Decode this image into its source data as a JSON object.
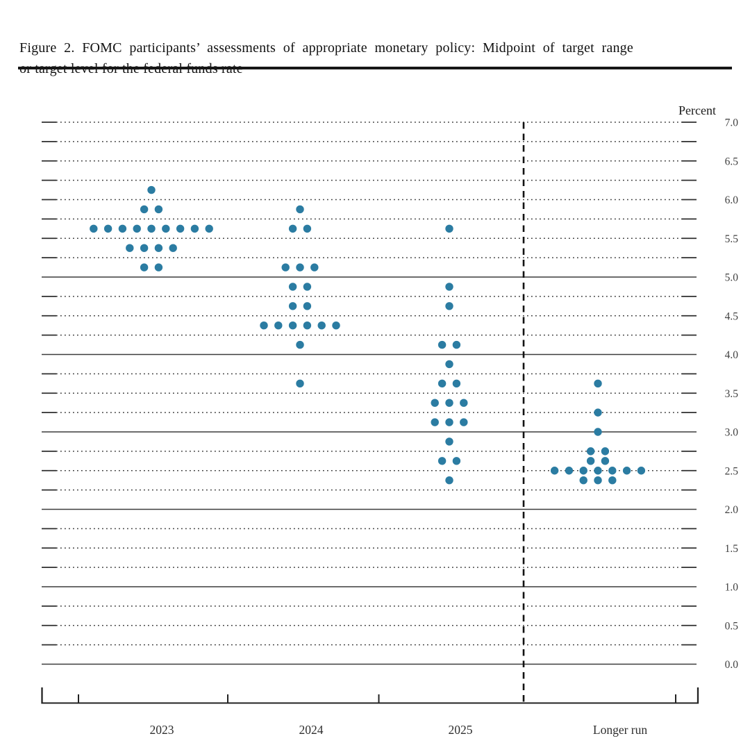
{
  "title": {
    "line1": "Figure 2.  FOMC participants’ assessments of appropriate monetary policy: Midpoint of target range",
    "line2": "or target level for the federal funds rate"
  },
  "chart_data": {
    "type": "scatter",
    "title": "FOMC participants’ assessments of appropriate monetary policy: Midpoint of target range or target level for the federal funds rate",
    "ylabel": "Percent",
    "ylim": [
      0.0,
      7.0
    ],
    "ytick_labels": [
      "7.0",
      "6.5",
      "6.0",
      "5.5",
      "5.0",
      "4.5",
      "4.0",
      "3.5",
      "3.0",
      "2.5",
      "2.0",
      "1.5",
      "1.0",
      "0.5",
      "0.0"
    ],
    "gridline_interval": 0.25,
    "solid_gridlines_at": [
      5.0,
      4.0,
      3.0,
      2.0,
      1.0,
      0.0
    ],
    "grid": true,
    "legend": false,
    "categories": [
      "2023",
      "2024",
      "2025",
      "Longer run"
    ],
    "separator_before_category": "Longer run",
    "dot_color": "#2b7ca2",
    "dot_meaning": "one dot = one participant’s projection of the midpoint of the appropriate target range or target level for the federal funds rate, percent",
    "series": [
      {
        "name": "2023",
        "dots": [
          {
            "rate": 6.125,
            "count": 1
          },
          {
            "rate": 5.875,
            "count": 2
          },
          {
            "rate": 5.625,
            "count": 9
          },
          {
            "rate": 5.375,
            "count": 4
          },
          {
            "rate": 5.125,
            "count": 2
          }
        ]
      },
      {
        "name": "2024",
        "dots": [
          {
            "rate": 5.875,
            "count": 1
          },
          {
            "rate": 5.625,
            "count": 2
          },
          {
            "rate": 5.125,
            "count": 3
          },
          {
            "rate": 4.875,
            "count": 2
          },
          {
            "rate": 4.625,
            "count": 2
          },
          {
            "rate": 4.375,
            "count": 6
          },
          {
            "rate": 4.125,
            "count": 1
          },
          {
            "rate": 3.625,
            "count": 1
          }
        ]
      },
      {
        "name": "2025",
        "dots": [
          {
            "rate": 5.625,
            "count": 1
          },
          {
            "rate": 4.875,
            "count": 1
          },
          {
            "rate": 4.625,
            "count": 1
          },
          {
            "rate": 4.125,
            "count": 2
          },
          {
            "rate": 3.875,
            "count": 1
          },
          {
            "rate": 3.625,
            "count": 2
          },
          {
            "rate": 3.375,
            "count": 3
          },
          {
            "rate": 3.125,
            "count": 3
          },
          {
            "rate": 2.875,
            "count": 1
          },
          {
            "rate": 2.625,
            "count": 2
          },
          {
            "rate": 2.375,
            "count": 1
          }
        ]
      },
      {
        "name": "Longer run",
        "dots": [
          {
            "rate": 3.625,
            "count": 1
          },
          {
            "rate": 3.25,
            "count": 1
          },
          {
            "rate": 3.0,
            "count": 1
          },
          {
            "rate": 2.75,
            "count": 2
          },
          {
            "rate": 2.625,
            "count": 2
          },
          {
            "rate": 2.5,
            "count": 7
          },
          {
            "rate": 2.375,
            "count": 3
          }
        ]
      }
    ]
  }
}
